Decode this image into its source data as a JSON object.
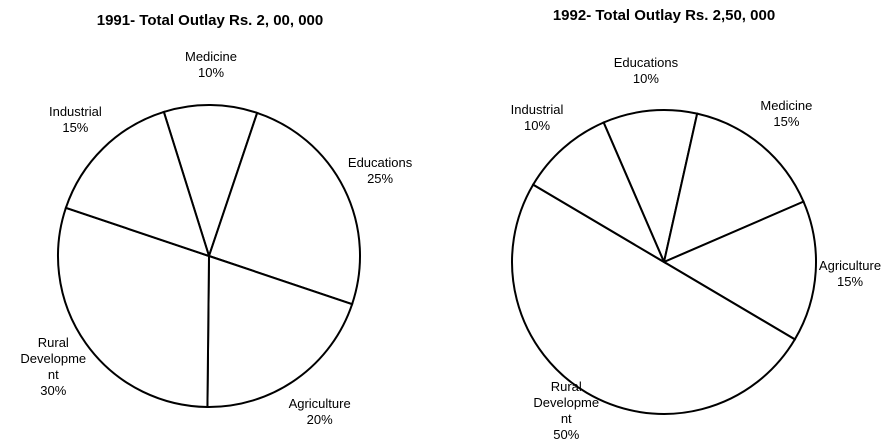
{
  "chart_data": [
    {
      "type": "pie",
      "title": "1991- Total Outlay Rs. 2, 00, 000",
      "categories": [
        "Medicine",
        "Educations",
        "Agriculture",
        "Rural Development",
        "Industrial"
      ],
      "values": [
        10,
        25,
        20,
        30,
        15
      ],
      "value_labels": [
        "10%",
        "25%",
        "20%",
        "30%",
        "15%"
      ],
      "color": "#ffffff"
    },
    {
      "type": "pie",
      "title": "1992- Total Outlay Rs. 2,50, 000",
      "categories": [
        "Educations",
        "Medicine",
        "Agriculture",
        "Rural Development",
        "Industrial"
      ],
      "values": [
        10,
        15,
        15,
        50,
        10
      ],
      "value_labels": [
        "10%",
        "15%",
        "15%",
        "50%",
        "10%"
      ],
      "color": "#ffffff"
    }
  ]
}
